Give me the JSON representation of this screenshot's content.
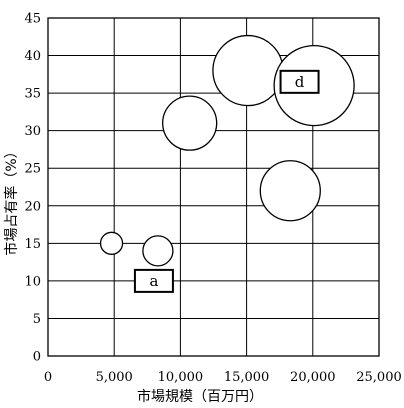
{
  "chart_data": {
    "type": "scatter",
    "subtype": "bubble",
    "title": "",
    "xlabel": "市場規模（百万円）",
    "ylabel": "市場占有率（%）",
    "xlim": [
      0,
      25000
    ],
    "ylim": [
      0,
      45
    ],
    "xticks": [
      0,
      5000,
      10000,
      15000,
      20000,
      25000
    ],
    "xtick_labels": [
      "0",
      "5,000",
      "10,000",
      "15,000",
      "20,000",
      "25,000"
    ],
    "yticks": [
      0,
      5,
      10,
      15,
      20,
      25,
      30,
      35,
      40,
      45
    ],
    "ytick_labels": [
      "0",
      "5",
      "10",
      "15",
      "20",
      "25",
      "30",
      "35",
      "40",
      "45"
    ],
    "grid": true,
    "legend": "none",
    "points": [
      {
        "x": 4800,
        "y": 15,
        "size": 11
      },
      {
        "x": 8300,
        "y": 14,
        "size": 15
      },
      {
        "x": 10700,
        "y": 31,
        "size": 27
      },
      {
        "x": 15100,
        "y": 38,
        "size": 35
      },
      {
        "x": 18300,
        "y": 22,
        "size": 30
      },
      {
        "x": 20100,
        "y": 36,
        "size": 40
      }
    ],
    "annotations": [
      {
        "label": "a",
        "x": 8000,
        "y": 10
      },
      {
        "label": "d",
        "x": 19000,
        "y": 36.5
      }
    ]
  }
}
